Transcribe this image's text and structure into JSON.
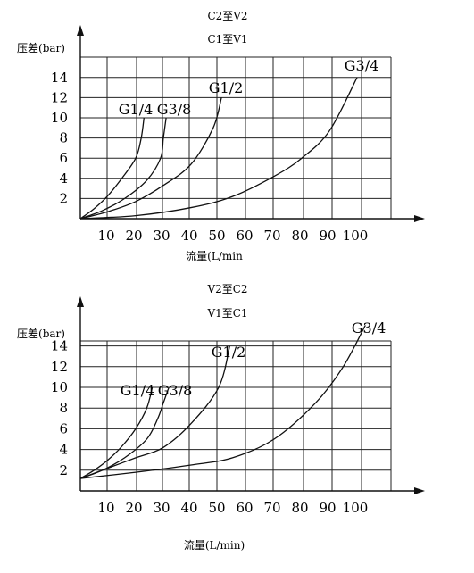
{
  "chart_data": [
    {
      "type": "line",
      "title_lines": [
        "C2至V2",
        "C1至V1"
      ],
      "ylabel": "压差(bar)",
      "xlabel": "流量(L/min",
      "x_ticks": [
        10,
        20,
        30,
        40,
        50,
        60,
        70,
        80,
        90,
        100
      ],
      "y_ticks": [
        2,
        4,
        6,
        8,
        10,
        12,
        14
      ],
      "xlim": [
        0,
        110
      ],
      "ylim": [
        0,
        16
      ],
      "grid": true,
      "series": [
        {
          "name": "G1/4",
          "points": [
            [
              0,
              0
            ],
            [
              5,
              1
            ],
            [
              10,
              2.3
            ],
            [
              15,
              4
            ],
            [
              20,
              6
            ],
            [
              22,
              8
            ],
            [
              23,
              10
            ]
          ]
        },
        {
          "name": "G3/8",
          "points": [
            [
              0,
              0
            ],
            [
              8,
              0.8
            ],
            [
              16,
              2
            ],
            [
              24,
              3.8
            ],
            [
              29,
              6
            ],
            [
              30,
              8
            ],
            [
              31,
              10
            ]
          ]
        },
        {
          "name": "G1/2",
          "points": [
            [
              0,
              0
            ],
            [
              10,
              0.7
            ],
            [
              20,
              1.7
            ],
            [
              30,
              3.3
            ],
            [
              40,
              5.4
            ],
            [
              48,
              9
            ],
            [
              51,
              12
            ]
          ]
        },
        {
          "name": "G3/4",
          "points": [
            [
              0,
              0
            ],
            [
              20,
              0.3
            ],
            [
              40,
              1.1
            ],
            [
              55,
              2.2
            ],
            [
              70,
              4.2
            ],
            [
              80,
              6
            ],
            [
              90,
              8.7
            ],
            [
              100,
              14
            ]
          ]
        }
      ]
    },
    {
      "type": "line",
      "title_lines": [
        "V2至C2",
        "V1至C1"
      ],
      "ylabel": "压差(bar)",
      "xlabel": "流量(L/min)",
      "x_ticks": [
        10,
        20,
        30,
        40,
        50,
        60,
        70,
        80,
        90,
        100
      ],
      "y_ticks": [
        2,
        4,
        6,
        8,
        10,
        12,
        14
      ],
      "xlim": [
        0,
        110
      ],
      "ylim": [
        0,
        16
      ],
      "grid": true,
      "series": [
        {
          "name": "G1/4",
          "points": [
            [
              0,
              1.2
            ],
            [
              5,
              2
            ],
            [
              10,
              3
            ],
            [
              15,
              4.3
            ],
            [
              20,
              6
            ],
            [
              24,
              8
            ],
            [
              26,
              10
            ]
          ]
        },
        {
          "name": "G3/8",
          "points": [
            [
              0,
              1.2
            ],
            [
              8,
              2
            ],
            [
              16,
              3.2
            ],
            [
              24,
              5
            ],
            [
              28,
              7
            ],
            [
              30,
              8.5
            ],
            [
              32,
              10
            ]
          ]
        },
        {
          "name": "G1/2",
          "points": [
            [
              0,
              1.2
            ],
            [
              10,
              2.2
            ],
            [
              20,
              3.2
            ],
            [
              30,
              4.2
            ],
            [
              40,
              6.5
            ],
            [
              50,
              10
            ],
            [
              54,
              14
            ]
          ]
        },
        {
          "name": "G3/4",
          "points": [
            [
              0,
              1.2
            ],
            [
              20,
              1.8
            ],
            [
              40,
              2.5
            ],
            [
              55,
              3.2
            ],
            [
              70,
              5
            ],
            [
              85,
              8.5
            ],
            [
              95,
              12
            ],
            [
              103,
              16
            ]
          ]
        }
      ]
    }
  ]
}
